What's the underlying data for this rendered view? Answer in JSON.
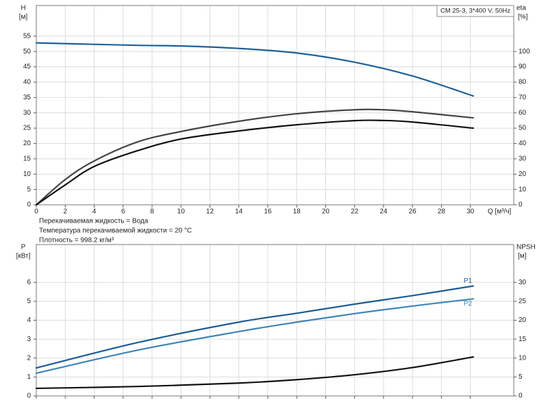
{
  "chart_data": [
    {
      "type": "line",
      "title": "CM 25-3, 3*400 V, 50Hz",
      "xlabel": "Q [м³/ч]",
      "ylabel": "H",
      "ylabel_unit": "[м]",
      "y2label": "eta",
      "y2label_unit": "[%]",
      "xlim": [
        0,
        33
      ],
      "xticks": [
        0,
        2,
        4,
        6,
        8,
        10,
        12,
        14,
        16,
        18,
        20,
        22,
        24,
        26,
        28,
        30
      ],
      "ylim": [
        0,
        65
      ],
      "yticks": [
        0,
        5,
        10,
        15,
        20,
        25,
        30,
        35,
        40,
        45,
        50,
        55
      ],
      "y2lim": [
        0,
        130
      ],
      "y2ticks": [
        0,
        10,
        20,
        30,
        40,
        50,
        60,
        70,
        80,
        90,
        100
      ],
      "grid": true,
      "xtick_labels": true,
      "series": [
        {
          "color": "#1f5f96",
          "x": [
            0,
            7,
            10,
            14,
            18,
            22,
            26,
            30.2
          ],
          "values": [
            52.8,
            52,
            51.8,
            51,
            49.5,
            46.5,
            42,
            35.5
          ]
        },
        {
          "color": "#444444",
          "axis": "y2",
          "x": [
            0,
            2,
            4,
            7,
            10,
            14,
            18,
            22,
            24,
            26,
            30.2
          ],
          "values": [
            0,
            16.5,
            28.6,
            41,
            47.8,
            54.5,
            59.4,
            62,
            62,
            60.7,
            56.7
          ]
        },
        {
          "color": "#111111",
          "axis": "y2",
          "x": [
            0,
            2,
            4,
            7,
            10,
            14,
            18,
            22,
            24,
            26,
            30.2
          ],
          "values": [
            0,
            13,
            25,
            35.3,
            42.9,
            48.2,
            52.2,
            54.9,
            55,
            54,
            50
          ]
        }
      ],
      "annotations": [
        "Перекачиваемая жидкость = Вода",
        "Температура перекачиваемой жидкости = 20 °C",
        "Плотность = 998.2 кг/м³"
      ]
    },
    {
      "type": "line",
      "ylabel": "P",
      "ylabel_unit": "[кВт]",
      "y2label": "NPSH",
      "y2label_unit": "[м]",
      "xlim": [
        0,
        33
      ],
      "xticks": [
        0,
        2,
        4,
        6,
        8,
        10,
        12,
        14,
        16,
        18,
        20,
        22,
        24,
        26,
        28,
        30
      ],
      "ylim": [
        0,
        8
      ],
      "yticks": [
        0,
        1,
        2,
        3,
        4,
        5,
        6
      ],
      "y2lim": [
        0,
        40
      ],
      "y2ticks": [
        0,
        5,
        10,
        15,
        20,
        25,
        30
      ],
      "grid": true,
      "xtick_labels": false,
      "series": [
        {
          "name": "P1",
          "color": "#1b5c94",
          "x": [
            0,
            7,
            14,
            18,
            22,
            26,
            30.2
          ],
          "values": [
            1.48,
            2.82,
            3.9,
            4.37,
            4.85,
            5.3,
            5.81
          ]
        },
        {
          "name": "P2",
          "color": "#3d85b8",
          "x": [
            0,
            7,
            14,
            18,
            22,
            26,
            30.2
          ],
          "values": [
            1.2,
            2.42,
            3.4,
            3.9,
            4.35,
            4.75,
            5.13
          ]
        },
        {
          "color": "#111111",
          "axis": "y2",
          "x": [
            0,
            7,
            14,
            18,
            22,
            26,
            30.2
          ],
          "values": [
            2,
            2.5,
            3.4,
            4.3,
            5.6,
            7.5,
            10.3
          ]
        }
      ]
    }
  ]
}
